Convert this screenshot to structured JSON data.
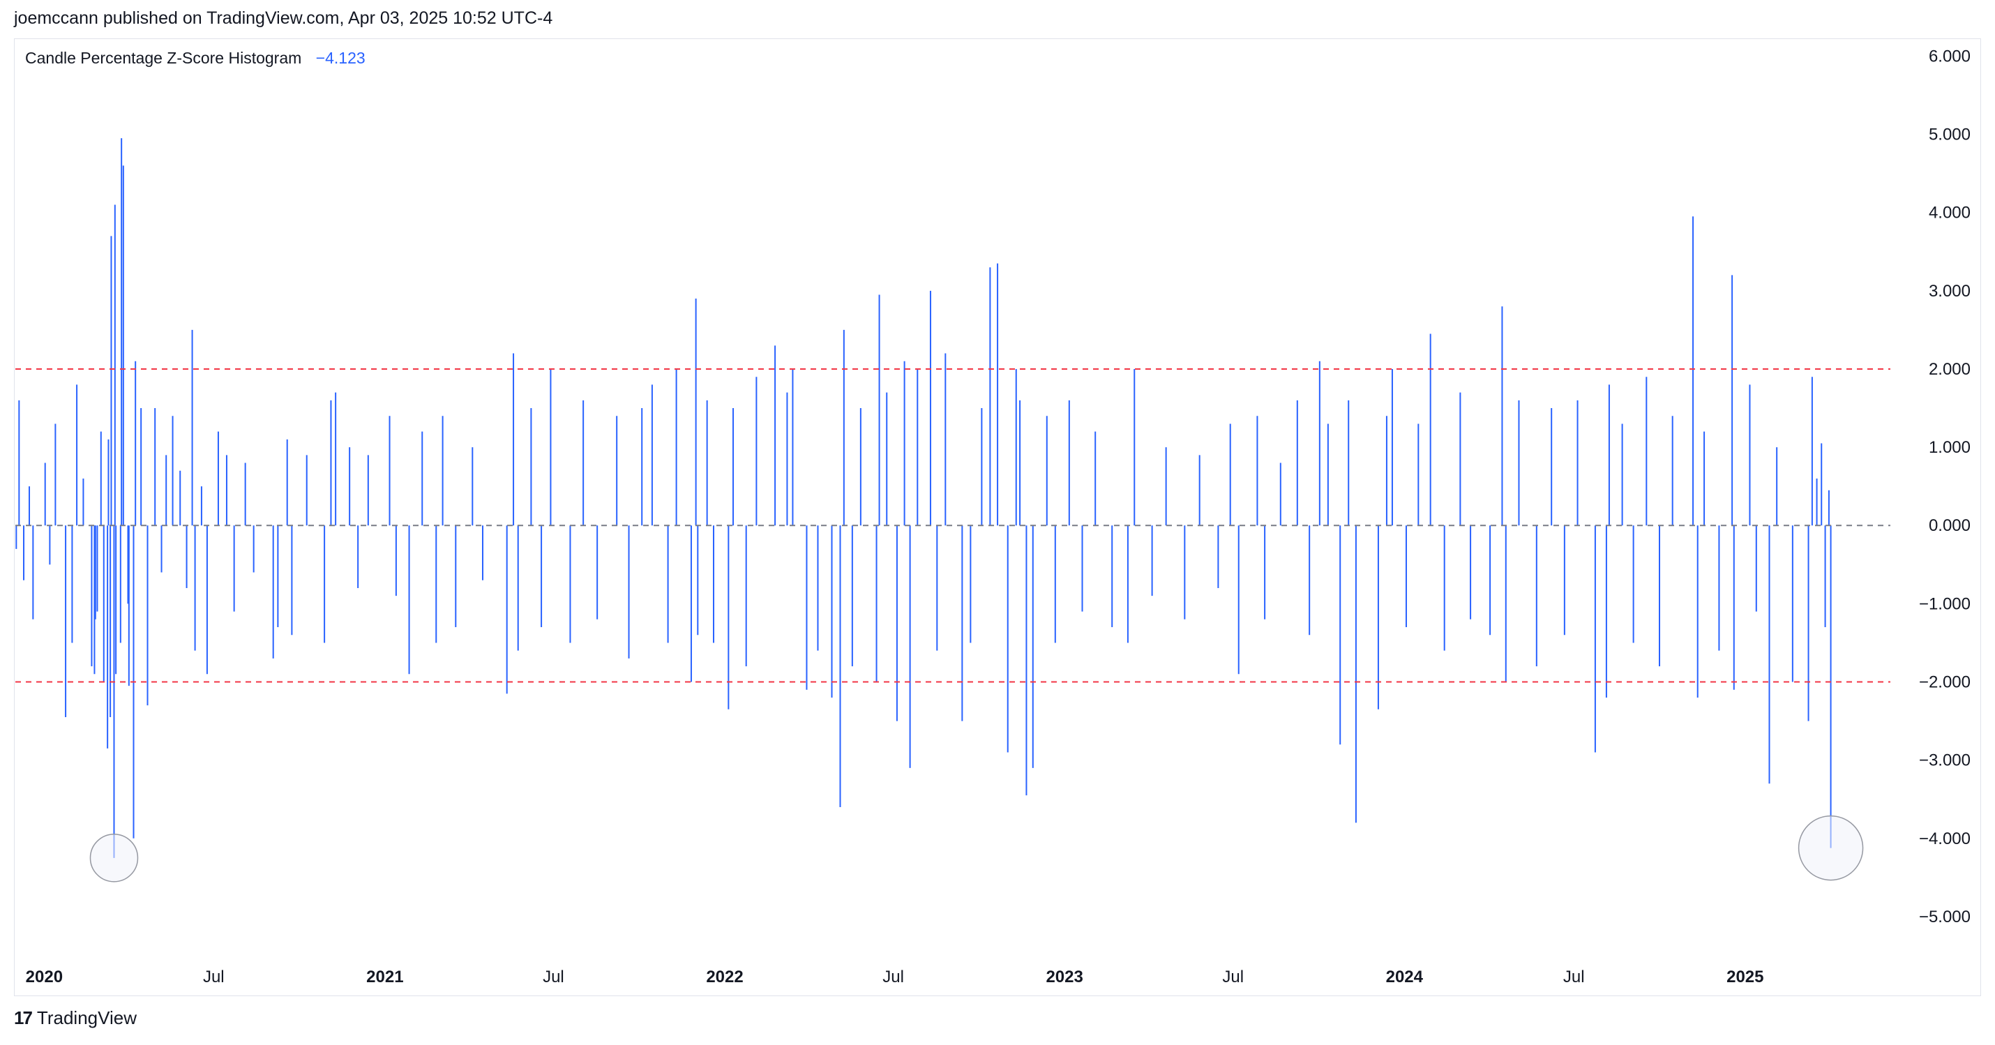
{
  "header": {
    "published": "joemccann published on TradingView.com, Apr 03, 2025 10:52 UTC-4"
  },
  "indicator": {
    "name": "Candle Percentage Z-Score Histogram",
    "value": "−4.123"
  },
  "footer": {
    "brand": "TradingView",
    "logo_glyph": "17"
  },
  "colors": {
    "bar": "#2962ff",
    "threshold": "#f23645",
    "zero": "#787b86",
    "text": "#131722",
    "grid_border": "#e0e3eb",
    "marker_fill": "#f0f3fa",
    "marker_stroke": "#9598a1"
  },
  "chart_data": {
    "type": "bar",
    "title": "Candle Percentage Z-Score Histogram",
    "last_value": -4.123,
    "x_range": [
      "2019-12-01",
      "2025-06-06"
    ],
    "ylim": [
      -5.5,
      6.2
    ],
    "y_ticks": [
      6,
      5,
      4,
      3,
      2,
      1,
      0,
      -1,
      -2,
      -3,
      -4,
      -5
    ],
    "y_tick_labels": [
      "6.000",
      "5.000",
      "4.000",
      "3.000",
      "2.000",
      "1.000",
      "0.000",
      "−1.000",
      "−2.000",
      "−3.000",
      "−4.000",
      "−5.000"
    ],
    "x_ticks": [
      {
        "date": "2020-01-01",
        "label": "2020",
        "bold": true
      },
      {
        "date": "2020-07-01",
        "label": "Jul",
        "bold": false
      },
      {
        "date": "2021-01-01",
        "label": "2021",
        "bold": true
      },
      {
        "date": "2021-07-01",
        "label": "Jul",
        "bold": false
      },
      {
        "date": "2022-01-01",
        "label": "2022",
        "bold": true
      },
      {
        "date": "2022-07-01",
        "label": "Jul",
        "bold": false
      },
      {
        "date": "2023-01-01",
        "label": "2023",
        "bold": true
      },
      {
        "date": "2023-07-01",
        "label": "Jul",
        "bold": false
      },
      {
        "date": "2024-01-01",
        "label": "2024",
        "bold": true
      },
      {
        "date": "2024-07-01",
        "label": "Jul",
        "bold": false
      },
      {
        "date": "2025-01-01",
        "label": "2025",
        "bold": true
      }
    ],
    "reference_lines": [
      {
        "y": 2,
        "style": "dashed",
        "color": "#f23645"
      },
      {
        "y": -2,
        "style": "dashed",
        "color": "#f23645"
      },
      {
        "y": 0,
        "style": "dashed",
        "color": "#787b86"
      }
    ],
    "highlighted_points": [
      {
        "date": "2020-03-16",
        "value": -4.25
      },
      {
        "date": "2025-04-03",
        "value": -4.123
      }
    ],
    "series": [
      {
        "values": [
          [
            "2019-12-02",
            -0.3
          ],
          [
            "2019-12-05",
            1.6
          ],
          [
            "2019-12-10",
            -0.7
          ],
          [
            "2019-12-16",
            0.5
          ],
          [
            "2019-12-20",
            -1.2
          ],
          [
            "2020-01-02",
            0.8
          ],
          [
            "2020-01-07",
            -0.5
          ],
          [
            "2020-01-13",
            1.3
          ],
          [
            "2020-01-24",
            -2.45
          ],
          [
            "2020-01-31",
            -1.5
          ],
          [
            "2020-02-05",
            1.8
          ],
          [
            "2020-02-12",
            0.6
          ],
          [
            "2020-02-21",
            -1.8
          ],
          [
            "2020-02-24",
            -1.9
          ],
          [
            "2020-02-25",
            -1.2
          ],
          [
            "2020-02-27",
            -1.1
          ],
          [
            "2020-03-02",
            1.2
          ],
          [
            "2020-03-05",
            -2.0
          ],
          [
            "2020-03-09",
            -2.85
          ],
          [
            "2020-03-10",
            1.1
          ],
          [
            "2020-03-12",
            -2.45
          ],
          [
            "2020-03-13",
            3.7
          ],
          [
            "2020-03-16",
            -4.25
          ],
          [
            "2020-03-17",
            4.1
          ],
          [
            "2020-03-18",
            -1.9
          ],
          [
            "2020-03-23",
            -1.5
          ],
          [
            "2020-03-24",
            4.95
          ],
          [
            "2020-03-26",
            4.6
          ],
          [
            "2020-03-31",
            -1.0
          ],
          [
            "2020-04-01",
            -2.05
          ],
          [
            "2020-04-06",
            -4.0
          ],
          [
            "2020-04-08",
            2.1
          ],
          [
            "2020-04-14",
            1.5
          ],
          [
            "2020-04-21",
            -2.3
          ],
          [
            "2020-04-29",
            1.5
          ],
          [
            "2020-05-06",
            -0.6
          ],
          [
            "2020-05-11",
            0.9
          ],
          [
            "2020-05-18",
            1.4
          ],
          [
            "2020-05-26",
            0.7
          ],
          [
            "2020-06-02",
            -0.8
          ],
          [
            "2020-06-08",
            2.5
          ],
          [
            "2020-06-11",
            -1.6
          ],
          [
            "2020-06-18",
            0.5
          ],
          [
            "2020-06-24",
            -1.9
          ],
          [
            "2020-07-06",
            1.2
          ],
          [
            "2020-07-15",
            0.9
          ],
          [
            "2020-07-23",
            -1.1
          ],
          [
            "2020-08-04",
            0.8
          ],
          [
            "2020-08-13",
            -0.6
          ],
          [
            "2020-09-03",
            -1.7
          ],
          [
            "2020-09-08",
            -1.3
          ],
          [
            "2020-09-18",
            1.1
          ],
          [
            "2020-09-23",
            -1.4
          ],
          [
            "2020-10-09",
            0.9
          ],
          [
            "2020-10-28",
            -1.5
          ],
          [
            "2020-11-04",
            1.6
          ],
          [
            "2020-11-09",
            1.7
          ],
          [
            "2020-11-24",
            1.0
          ],
          [
            "2020-12-03",
            -0.8
          ],
          [
            "2020-12-14",
            0.9
          ],
          [
            "2021-01-06",
            1.4
          ],
          [
            "2021-01-13",
            -0.9
          ],
          [
            "2021-01-27",
            -1.9
          ],
          [
            "2021-02-10",
            1.2
          ],
          [
            "2021-02-25",
            -1.5
          ],
          [
            "2021-03-04",
            1.4
          ],
          [
            "2021-03-18",
            -1.3
          ],
          [
            "2021-04-05",
            1.0
          ],
          [
            "2021-04-16",
            -0.7
          ],
          [
            "2021-05-12",
            -2.15
          ],
          [
            "2021-05-19",
            2.2
          ],
          [
            "2021-05-24",
            -1.6
          ],
          [
            "2021-06-07",
            1.5
          ],
          [
            "2021-06-18",
            -1.3
          ],
          [
            "2021-06-28",
            2.0
          ],
          [
            "2021-07-19",
            -1.5
          ],
          [
            "2021-08-02",
            1.6
          ],
          [
            "2021-08-17",
            -1.2
          ],
          [
            "2021-09-07",
            1.4
          ],
          [
            "2021-09-20",
            -1.7
          ],
          [
            "2021-10-04",
            1.5
          ],
          [
            "2021-10-15",
            1.8
          ],
          [
            "2021-11-01",
            -1.5
          ],
          [
            "2021-11-10",
            2.0
          ],
          [
            "2021-11-26",
            -2.0
          ],
          [
            "2021-12-01",
            2.9
          ],
          [
            "2021-12-03",
            -1.4
          ],
          [
            "2021-12-13",
            1.6
          ],
          [
            "2021-12-20",
            -1.5
          ],
          [
            "2022-01-05",
            -2.35
          ],
          [
            "2022-01-10",
            1.5
          ],
          [
            "2022-01-24",
            -1.8
          ],
          [
            "2022-02-04",
            1.9
          ],
          [
            "2022-02-24",
            2.3
          ],
          [
            "2022-03-09",
            1.7
          ],
          [
            "2022-03-15",
            2.0
          ],
          [
            "2022-03-30",
            -2.1
          ],
          [
            "2022-04-11",
            -1.6
          ],
          [
            "2022-04-26",
            -2.2
          ],
          [
            "2022-05-05",
            -3.6
          ],
          [
            "2022-05-09",
            2.5
          ],
          [
            "2022-05-18",
            -1.8
          ],
          [
            "2022-05-27",
            1.5
          ],
          [
            "2022-06-13",
            -2.0
          ],
          [
            "2022-06-16",
            2.95
          ],
          [
            "2022-06-24",
            1.7
          ],
          [
            "2022-07-05",
            -2.5
          ],
          [
            "2022-07-13",
            2.1
          ],
          [
            "2022-07-19",
            -3.1
          ],
          [
            "2022-07-27",
            2.0
          ],
          [
            "2022-08-10",
            3.0
          ],
          [
            "2022-08-17",
            -1.6
          ],
          [
            "2022-08-26",
            2.2
          ],
          [
            "2022-09-13",
            -2.5
          ],
          [
            "2022-09-22",
            -1.5
          ],
          [
            "2022-10-04",
            1.5
          ],
          [
            "2022-10-13",
            3.3
          ],
          [
            "2022-10-21",
            3.35
          ],
          [
            "2022-11-01",
            -2.9
          ],
          [
            "2022-11-10",
            2.0
          ],
          [
            "2022-11-14",
            1.6
          ],
          [
            "2022-11-21",
            -3.45
          ],
          [
            "2022-11-28",
            -3.1
          ],
          [
            "2022-12-13",
            1.4
          ],
          [
            "2022-12-22",
            -1.5
          ],
          [
            "2023-01-06",
            1.6
          ],
          [
            "2023-01-20",
            -1.1
          ],
          [
            "2023-02-03",
            1.2
          ],
          [
            "2023-02-21",
            -1.3
          ],
          [
            "2023-03-10",
            -1.5
          ],
          [
            "2023-03-17",
            2.0
          ],
          [
            "2023-04-05",
            -0.9
          ],
          [
            "2023-04-20",
            1.0
          ],
          [
            "2023-05-10",
            -1.2
          ],
          [
            "2023-05-26",
            0.9
          ],
          [
            "2023-06-15",
            -0.8
          ],
          [
            "2023-06-28",
            1.3
          ],
          [
            "2023-07-07",
            -1.9
          ],
          [
            "2023-07-27",
            1.4
          ],
          [
            "2023-08-04",
            -1.2
          ],
          [
            "2023-08-21",
            0.8
          ],
          [
            "2023-09-08",
            1.6
          ],
          [
            "2023-09-21",
            -1.4
          ],
          [
            "2023-10-02",
            2.1
          ],
          [
            "2023-10-11",
            1.3
          ],
          [
            "2023-10-24",
            -2.8
          ],
          [
            "2023-11-02",
            1.6
          ],
          [
            "2023-11-10",
            -3.8
          ],
          [
            "2023-12-04",
            -2.35
          ],
          [
            "2023-12-13",
            1.4
          ],
          [
            "2023-12-19",
            2.0
          ],
          [
            "2024-01-03",
            -1.3
          ],
          [
            "2024-01-16",
            1.3
          ],
          [
            "2024-01-29",
            2.45
          ],
          [
            "2024-02-13",
            -1.6
          ],
          [
            "2024-03-01",
            1.7
          ],
          [
            "2024-03-12",
            -1.2
          ],
          [
            "2024-04-02",
            -1.4
          ],
          [
            "2024-04-15",
            2.8
          ],
          [
            "2024-04-19",
            -2.0
          ],
          [
            "2024-05-03",
            1.6
          ],
          [
            "2024-05-22",
            -1.8
          ],
          [
            "2024-06-07",
            1.5
          ],
          [
            "2024-06-21",
            -1.4
          ],
          [
            "2024-07-05",
            1.6
          ],
          [
            "2024-07-24",
            -2.9
          ],
          [
            "2024-08-05",
            -2.2
          ],
          [
            "2024-08-08",
            1.8
          ],
          [
            "2024-08-22",
            1.3
          ],
          [
            "2024-09-03",
            -1.5
          ],
          [
            "2024-09-17",
            1.9
          ],
          [
            "2024-10-01",
            -1.8
          ],
          [
            "2024-10-15",
            1.4
          ],
          [
            "2024-11-06",
            3.95
          ],
          [
            "2024-11-11",
            -2.2
          ],
          [
            "2024-11-18",
            1.2
          ],
          [
            "2024-12-04",
            -1.6
          ],
          [
            "2024-12-18",
            3.2
          ],
          [
            "2024-12-20",
            -2.1
          ],
          [
            "2025-01-06",
            1.8
          ],
          [
            "2025-01-13",
            -1.1
          ],
          [
            "2025-01-27",
            -3.3
          ],
          [
            "2025-02-04",
            1.0
          ],
          [
            "2025-02-21",
            -2.0
          ],
          [
            "2025-03-10",
            -2.5
          ],
          [
            "2025-03-14",
            1.9
          ],
          [
            "2025-03-19",
            0.6
          ],
          [
            "2025-03-24",
            1.05
          ],
          [
            "2025-03-28",
            -1.3
          ],
          [
            "2025-04-01",
            0.45
          ],
          [
            "2025-04-03",
            -4.123
          ]
        ]
      }
    ]
  }
}
